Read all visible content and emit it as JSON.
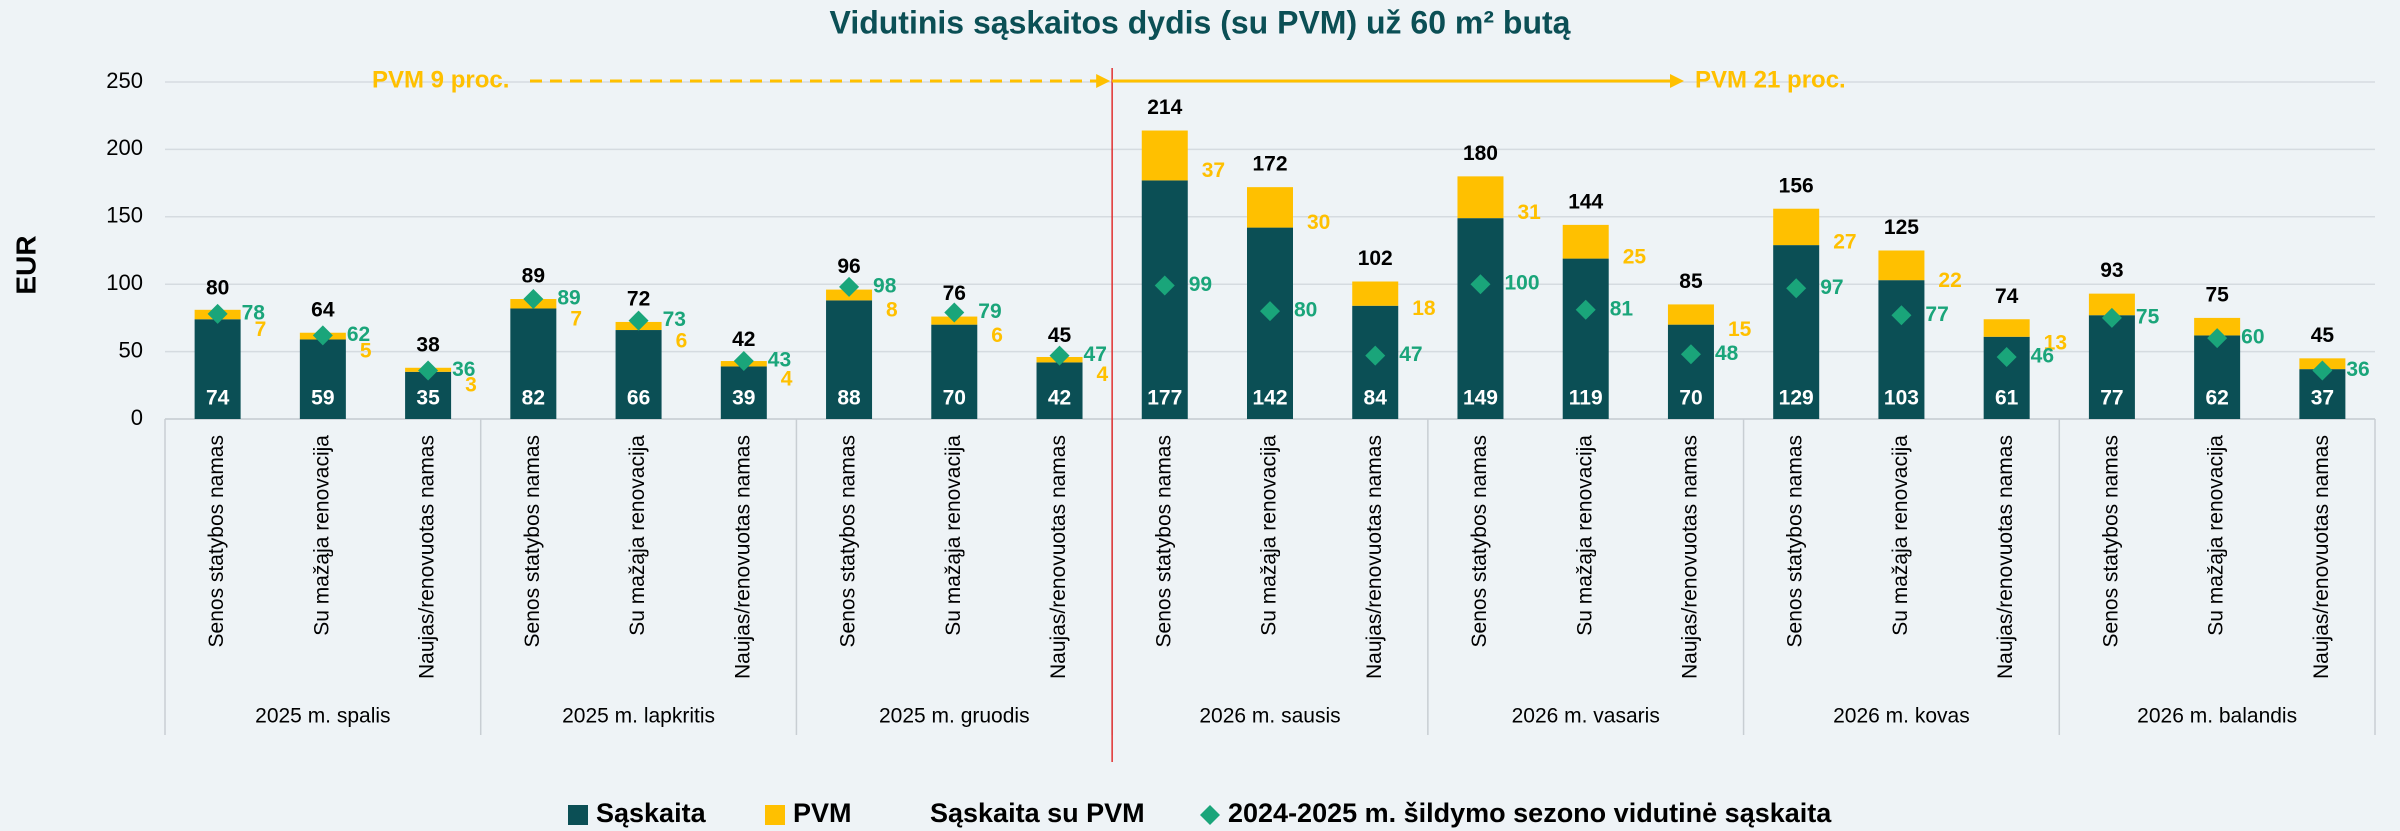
{
  "chart_data": {
    "type": "stacked_bar",
    "title": "Vidutinis sąskaitos dydis (su PVM) už 60 m² butą",
    "ylabel": "EUR",
    "ylim": [
      0,
      250
    ],
    "yticks": [
      0,
      50,
      100,
      150,
      200,
      250
    ],
    "grid": true,
    "legend": "bottom",
    "categories": [
      "Senos statybos namas",
      "Su mažąja renovacija",
      "Naujas/renovuotas namas",
      "Senos statybos namas",
      "Su mažąja renovacija",
      "Naujas/renovuotas namas",
      "Senos statybos namas",
      "Su mažąja renovacija",
      "Naujas/renovuotas namas",
      "Senos statybos namas",
      "Su mažąja renovacija",
      "Naujas/renovuotas namas",
      "Senos statybos namas",
      "Su mažąja renovacija",
      "Naujas/renovuotas namas",
      "Senos statybos namas",
      "Su mažąja renovacija",
      "Naujas/renovuotas namas",
      "Senos statybos namas",
      "Su mažąja renovacija",
      "Naujas/renovuotas namas"
    ],
    "groups": [
      "2025 m. spalis",
      "2025 m. lapkritis",
      "2025 m. gruodis",
      "2026 m. sausis",
      "2026 m. vasaris",
      "2026 m. kovas",
      "2026 m. balandis"
    ],
    "series": [
      {
        "name": "Sąskaita",
        "type": "bar",
        "color": "#0b4f55",
        "values": [
          74,
          59,
          35,
          82,
          66,
          39,
          88,
          70,
          42,
          177,
          142,
          84,
          149,
          119,
          70,
          129,
          103,
          61,
          77,
          62,
          37
        ]
      },
      {
        "name": "PVM",
        "type": "bar",
        "color": "#ffc000",
        "values": [
          7,
          5,
          3,
          7,
          6,
          4,
          8,
          6,
          4,
          37,
          30,
          18,
          31,
          25,
          15,
          27,
          22,
          13,
          16,
          13,
          8
        ],
        "value_labels": [
          "7",
          "5",
          "3",
          "7",
          "6",
          "4",
          "8",
          "6",
          "4",
          "37",
          "30",
          "18",
          "31",
          "25",
          "15",
          "27",
          "22",
          "13",
          null,
          null,
          null
        ]
      },
      {
        "name": "Sąskaita su PVM",
        "type": "total",
        "values": [
          80,
          64,
          38,
          89,
          72,
          42,
          96,
          76,
          45,
          214,
          172,
          102,
          180,
          144,
          85,
          156,
          125,
          74,
          93,
          75,
          45
        ]
      },
      {
        "name": "2024-2025 m. šildymo sezono vidutinė sąskaita",
        "type": "diamond",
        "color": "#1aa57a",
        "values": [
          78,
          62,
          36,
          89,
          73,
          43,
          98,
          79,
          47,
          99,
          80,
          47,
          100,
          81,
          48,
          97,
          77,
          46,
          75,
          60,
          36
        ]
      }
    ],
    "annotations": [
      "PVM 9 proc.",
      "PVM 21 proc."
    ],
    "annotation_color": "#ffc000",
    "divider_color": "#e03030"
  }
}
